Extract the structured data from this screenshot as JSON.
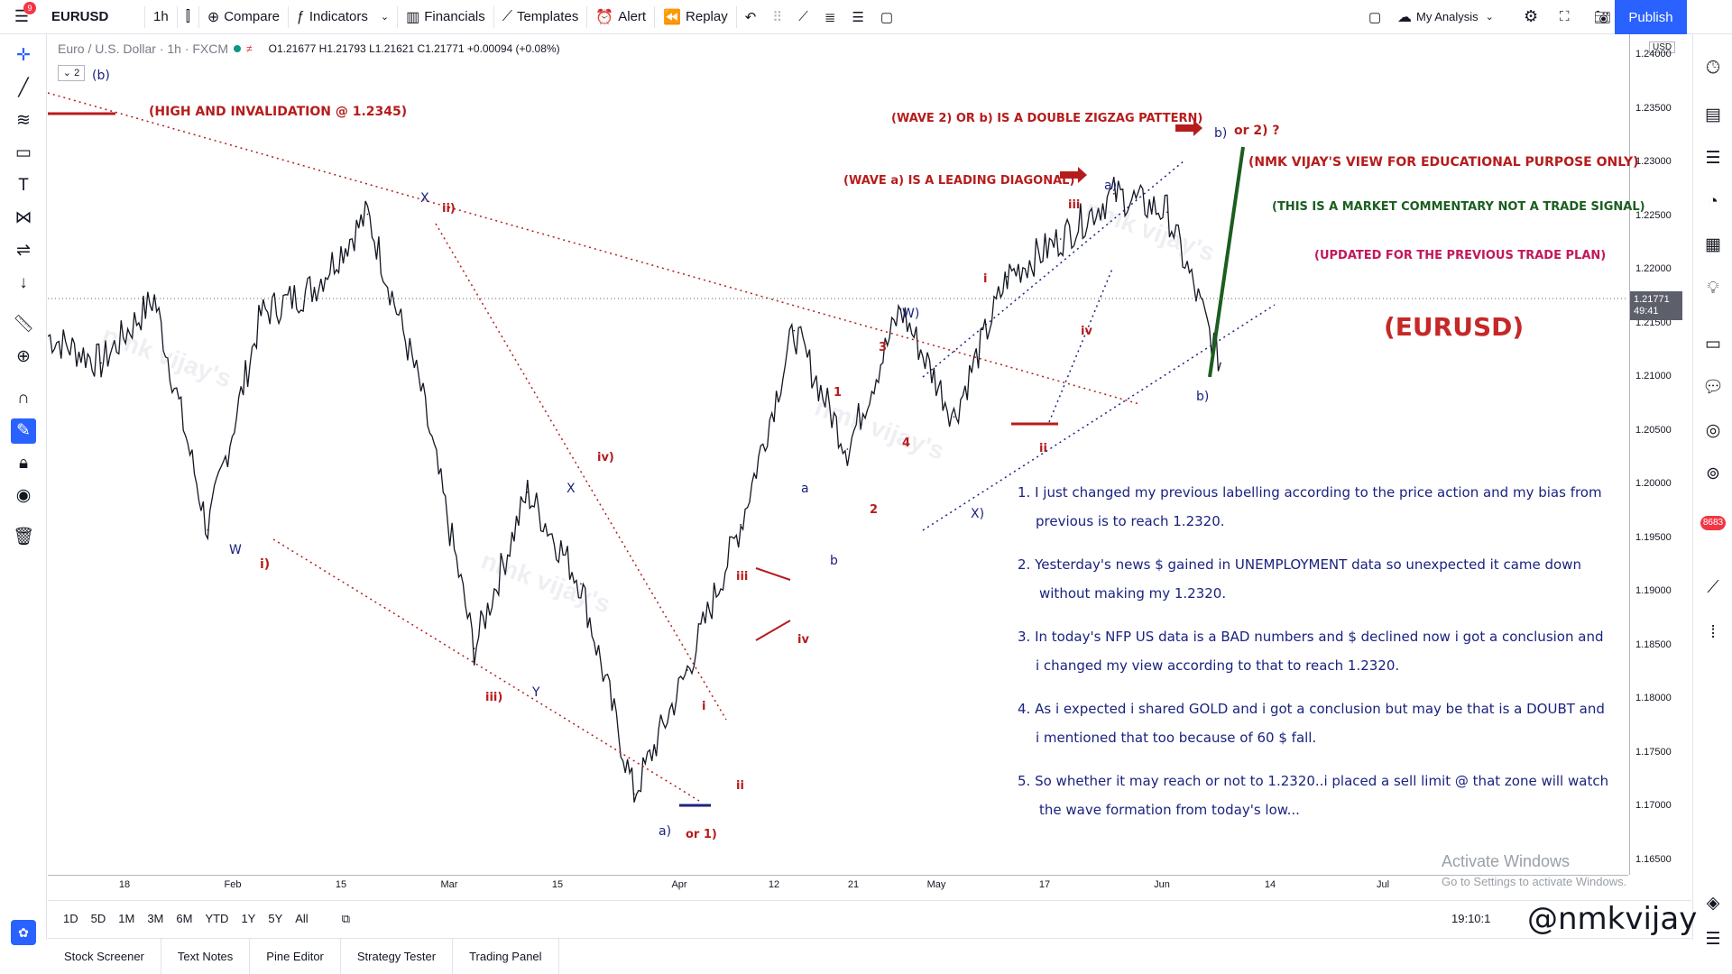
{
  "toolbar": {
    "notification_count": "9",
    "symbol": "EURUSD",
    "interval": "1h",
    "compare": "Compare",
    "indicators": "Indicators",
    "financials": "Financials",
    "templates": "Templates",
    "alert": "Alert",
    "replay": "Replay",
    "layout_name": "My Analysis",
    "publish": "Publish"
  },
  "legend": {
    "title": "Euro / U.S. Dollar · 1h · FXCM",
    "ohlc": "O1.21677 H1.21793 L1.21621 C1.21771 +0.00094 (+0.08%)",
    "collapse": "2"
  },
  "price_axis": {
    "currency": "USD",
    "ticks": [
      "1.24000",
      "1.23500",
      "1.23000",
      "1.22500",
      "1.22000",
      "1.21500",
      "1.21000",
      "1.20500",
      "1.20000",
      "1.19500",
      "1.19000",
      "1.18500",
      "1.18000",
      "1.17500",
      "1.17000",
      "1.16500"
    ],
    "last_price": "1.21771",
    "countdown": "49:41"
  },
  "time_axis": {
    "ticks": [
      "18",
      "Feb",
      "15",
      "Mar",
      "15",
      "Apr",
      "12",
      "21",
      "May",
      "17",
      "Jun",
      "14",
      "Jul"
    ]
  },
  "range_bar": {
    "ranges": [
      "1D",
      "5D",
      "1M",
      "3M",
      "6M",
      "YTD",
      "1Y",
      "5Y",
      "All"
    ],
    "time_readout": "19:10:1"
  },
  "bottom_tabs": [
    "Stock Screener",
    "Text Notes",
    "Pine Editor",
    "Strategy Tester",
    "Trading Panel"
  ],
  "annotations": {
    "invalidation": "(HIGH AND INVALIDATION @ 1.2345)",
    "double_zigzag": "(WAVE 2) OR b) IS A DOUBLE ZIGZAG PATTERN)",
    "leading_diagonal": "(WAVE a) IS A LEADING DIAGONAL)",
    "view": "(NMK VIJAY'S VIEW FOR EDUCATIONAL PURPOSE ONLY)",
    "commentary": "(THIS IS A MARKET COMMENTARY NOT A TRADE SIGNAL)",
    "updated": "(UPDATED FOR THE PREVIOUS TRADE PLAN)",
    "ticker": "(EURUSD)",
    "b_or_2": "or 2) ?"
  },
  "wave_labels": {
    "b_top_left": "(b)",
    "W": "W",
    "i_red": "i)",
    "X_blue": "X",
    "ii_red": "ii)",
    "iii_red": "iii)",
    "Y": "Y",
    "X2": "X",
    "iv_red": "iv)",
    "a_blue": "a)",
    "or1": "or 1)",
    "i_small": "i",
    "ii_small": "ii",
    "iii_small": "iii",
    "iv_small": "iv",
    "a_small": "a",
    "b_small": "b",
    "one": "1",
    "two": "2",
    "three": "3",
    "four": "4",
    "Wp": "W)",
    "Xp": "X)",
    "i2": "i",
    "iii2": "iii",
    "iv2": "iv",
    "ii2": "ii",
    "a_top": "a)",
    "b_top": "b)",
    "b_low": "b)"
  },
  "notes": [
    {
      "n": "1.",
      "l1": "I just changed my previous labelling according to the price action and my bias from",
      "l2": "previous is to reach 1.2320."
    },
    {
      "n": "2.",
      "l1": "Yesterday's news $ gained in UNEMPLOYMENT data so unexpected it came down",
      "l2": "without making my 1.2320."
    },
    {
      "n": "3.",
      "l1": "In today's NFP US data is a BAD numbers and $ declined now i got a conclusion and",
      "l2": "i changed my view according to that to reach 1.2320."
    },
    {
      "n": "4.",
      "l1": "As i expected i shared GOLD and i got a conclusion but may be that is a DOUBT and",
      "l2": "i mentioned that too because of 60 $ fall."
    },
    {
      "n": "5.",
      "l1": "So whether it may reach or not to 1.2320..i placed a sell limit @ that zone will watch",
      "l2": "the wave formation from today's low..."
    }
  ],
  "watermark": "nmk vijay's",
  "windows": {
    "title": "Activate Windows",
    "sub": "Go to Settings to activate Windows."
  },
  "signature": "@nmkvijay",
  "right_badge": "8683",
  "colors": {
    "accent": "#2962ff",
    "wave_red": "#b71c1c",
    "wave_blue": "#1a237e",
    "green": "#1b5e20"
  },
  "chart_data": {
    "type": "line",
    "title": "Euro / U.S. Dollar · 1h · FXCM",
    "xlabel": "",
    "ylabel": "",
    "ylim": [
      1.163,
      1.241
    ],
    "x": [
      "Jan 18",
      "Jan 25",
      "Feb 1",
      "Feb 8",
      "Feb 15",
      "Feb 22",
      "Feb 25",
      "Mar 1",
      "Mar 9",
      "Mar 15",
      "Mar 22",
      "Mar 31",
      "Apr 5",
      "Apr 12",
      "Apr 21",
      "Apr 29",
      "May 5",
      "May 11",
      "May 13",
      "May 17",
      "May 25",
      "Jun 1",
      "Jun 4"
    ],
    "series": [
      {
        "name": "EURUSD",
        "values": [
          1.213,
          1.2105,
          1.2165,
          1.195,
          1.215,
          1.2175,
          1.2243,
          1.208,
          1.184,
          1.1985,
          1.19,
          1.1705,
          1.182,
          1.1955,
          1.2135,
          1.2025,
          1.2155,
          1.2055,
          1.2185,
          1.222,
          1.2262,
          1.2245,
          1.2105
        ]
      }
    ]
  }
}
